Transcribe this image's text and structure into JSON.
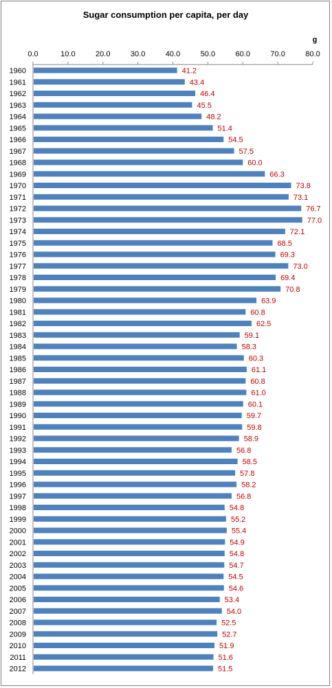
{
  "chart_data": {
    "type": "bar",
    "orientation": "horizontal",
    "title": "Sugar consumption per capita, per day",
    "unit": "g",
    "xlim": [
      0,
      80
    ],
    "x_ticks": [
      "0.0",
      "10.0",
      "20.0",
      "30.0",
      "40.0",
      "50.0",
      "60.0",
      "70.0",
      "80.0"
    ],
    "grid": false,
    "bar_color": "#4f81bd",
    "label_color": "#c00000",
    "categories": [
      "1960",
      "1961",
      "1962",
      "1963",
      "1964",
      "1965",
      "1966",
      "1967",
      "1968",
      "1969",
      "1970",
      "1971",
      "1972",
      "1973",
      "1974",
      "1975",
      "1976",
      "1977",
      "1978",
      "1979",
      "1980",
      "1981",
      "1982",
      "1983",
      "1984",
      "1985",
      "1986",
      "1987",
      "1988",
      "1989",
      "1990",
      "1991",
      "1992",
      "1993",
      "1994",
      "1995",
      "1996",
      "1997",
      "1998",
      "1999",
      "2000",
      "2001",
      "2002",
      "2003",
      "2004",
      "2005",
      "2006",
      "2007",
      "2008",
      "2009",
      "2010",
      "2011",
      "2012"
    ],
    "values": [
      41.2,
      43.4,
      46.4,
      45.5,
      48.2,
      51.4,
      54.5,
      57.5,
      60.0,
      66.3,
      73.8,
      73.1,
      76.7,
      77.0,
      72.1,
      68.5,
      69.3,
      73.0,
      69.4,
      70.8,
      63.9,
      60.8,
      62.5,
      59.1,
      58.3,
      60.3,
      61.1,
      60.8,
      61.0,
      60.1,
      59.7,
      59.8,
      58.9,
      56.8,
      58.5,
      57.8,
      58.2,
      56.8,
      54.8,
      55.2,
      55.4,
      54.9,
      54.8,
      54.7,
      54.5,
      54.6,
      53.4,
      54.0,
      52.5,
      52.7,
      51.9,
      51.6,
      51.5
    ],
    "value_labels": [
      "41.2",
      "43.4",
      "46.4",
      "45.5",
      "48.2",
      "51.4",
      "54.5",
      "57.5",
      "60.0",
      "66.3",
      "73.8",
      "73.1",
      "76.7",
      "77.0",
      "72.1",
      "68.5",
      "69.3",
      "73.0",
      "69.4",
      "70.8",
      "63.9",
      "60.8",
      "62.5",
      "59.1",
      "58.3",
      "60.3",
      "61.1",
      "60.8",
      "61.0",
      "60.1",
      "59.7",
      "59.8",
      "58.9",
      "56.8",
      "58.5",
      "57.8",
      "58.2",
      "56.8",
      "54.8",
      "55.2",
      "55.4",
      "54.9",
      "54.8",
      "54.7",
      "54.5",
      "54.6",
      "53.4",
      "54.0",
      "52.5",
      "52.7",
      "51.9",
      "51.6",
      "51.5"
    ]
  }
}
